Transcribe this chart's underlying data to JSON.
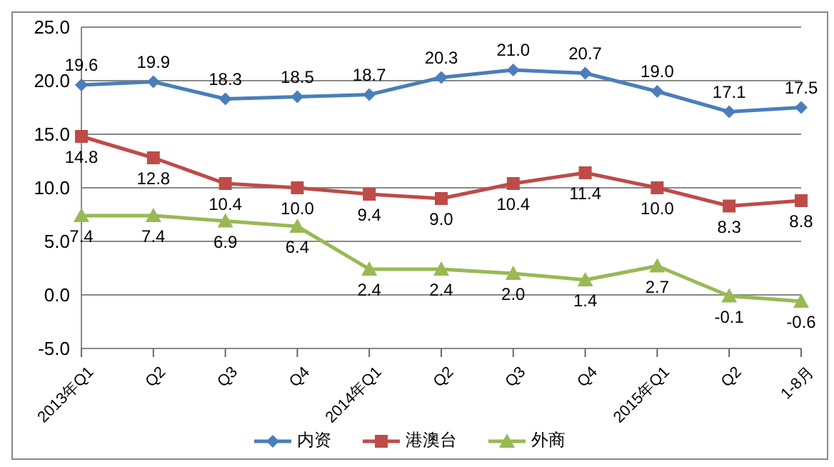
{
  "chart_data": {
    "type": "line",
    "categories": [
      "2013年Q1",
      "Q2",
      "Q3",
      "Q4",
      "2014年Q1",
      "Q2",
      "Q3",
      "Q4",
      "2015年Q1",
      "Q2",
      "1-8月"
    ],
    "series": [
      {
        "name": "内资",
        "color": "#4a7ebb",
        "marker": "diamond",
        "values": [
          19.6,
          19.9,
          18.3,
          18.5,
          18.7,
          20.3,
          21.0,
          20.7,
          19.0,
          17.1,
          17.5
        ],
        "value_labels": [
          "19.6",
          "19.9",
          "18.3",
          "18.5",
          "18.7",
          "20.3",
          "21.0",
          "20.7",
          "19.0",
          "17.1",
          "17.5"
        ]
      },
      {
        "name": "港澳台",
        "color": "#be4b48",
        "marker": "square",
        "values": [
          14.8,
          12.8,
          10.4,
          10.0,
          9.4,
          9.0,
          10.4,
          11.4,
          10.0,
          8.3,
          8.8
        ],
        "value_labels": [
          "14.8",
          "12.8",
          "10.4",
          "10.0",
          "9.4",
          "9.0",
          "10.4",
          "11.4",
          "10.0",
          "8.3",
          "8.8"
        ]
      },
      {
        "name": "外商",
        "color": "#98b954",
        "marker": "triangle",
        "values": [
          7.4,
          7.4,
          6.9,
          6.4,
          2.4,
          2.4,
          2.0,
          1.4,
          2.7,
          -0.1,
          -0.6
        ],
        "value_labels": [
          "7.4",
          "7.4",
          "6.9",
          "6.4",
          "2.4",
          "2.4",
          "2.0",
          "1.4",
          "2.7",
          "-0.1",
          "-0.6"
        ]
      }
    ],
    "ylim": [
      -5,
      25
    ],
    "yticks": [
      {
        "value": -5,
        "label": "-5.0"
      },
      {
        "value": 0,
        "label": "0.0"
      },
      {
        "value": 5,
        "label": "5.0"
      },
      {
        "value": 10,
        "label": "10.0"
      },
      {
        "value": 15,
        "label": "15.0"
      },
      {
        "value": 20,
        "label": "20.0"
      },
      {
        "value": 25,
        "label": "25.0"
      }
    ],
    "grid": "y",
    "legend": "bottom"
  }
}
